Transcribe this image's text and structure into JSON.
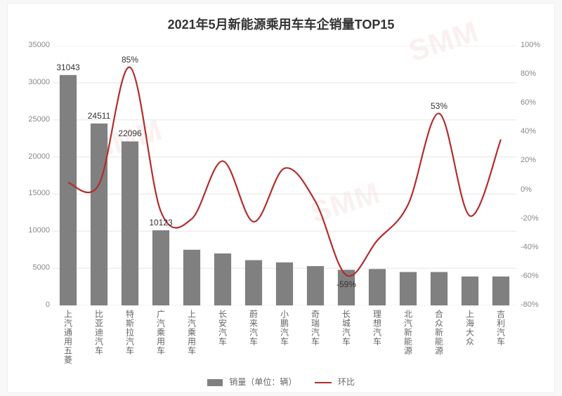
{
  "chart": {
    "type": "bar+line",
    "title": "2021年5月新能源乘用车车企销量TOP15",
    "title_fontsize": 18,
    "background_color": "#ffffff",
    "page_background": "#f8f8f8",
    "categories": [
      "上汽通用五菱",
      "比亚迪汽车",
      "特斯拉汽车",
      "广汽乘用车",
      "上汽乘用车",
      "长安汽车",
      "蔚来汽车",
      "小鹏汽车",
      "奇瑞汽车",
      "长城汽车",
      "理想汽车",
      "北汽新能源",
      "合众新能源",
      "上海大众",
      "吉利汽车"
    ],
    "bars": {
      "label": "销量（单位：辆）",
      "color": "#808080",
      "bar_width_ratio": 0.55,
      "values": [
        31043,
        24511,
        22096,
        10123,
        7500,
        7000,
        6100,
        5800,
        5300,
        4800,
        4900,
        4500,
        4500,
        3900,
        3900
      ],
      "value_labels_shown": [
        "31043",
        "24511",
        "22096",
        "10123",
        "",
        "",
        "",
        "",
        "",
        "",
        "",
        "",
        "",
        "",
        ""
      ]
    },
    "line": {
      "label": "环比",
      "color": "#b22d2d",
      "line_width": 2.2,
      "values_pct": [
        5,
        4,
        85,
        -15,
        -20,
        20,
        -22,
        15,
        -8,
        -59,
        -35,
        -10,
        53,
        -18,
        35
      ],
      "value_labels_shown": [
        "",
        "",
        "85%",
        "",
        "",
        "",
        "",
        "",
        "",
        "-59%",
        "",
        "",
        "53%",
        "",
        ""
      ]
    },
    "y_left": {
      "min": 0,
      "max": 35000,
      "step": 5000,
      "label_fontsize": 11,
      "color": "#888888"
    },
    "y_right": {
      "min": -80,
      "max": 100,
      "step": 20,
      "label_fontsize": 11,
      "color": "#888888",
      "suffix": "%"
    },
    "grid_color": "#e5e5e5",
    "axis_label_color": "#888888",
    "category_label_color": "#666666",
    "category_label_fontsize": 12,
    "legend_fontsize": 12,
    "watermark_text": "SMM"
  }
}
